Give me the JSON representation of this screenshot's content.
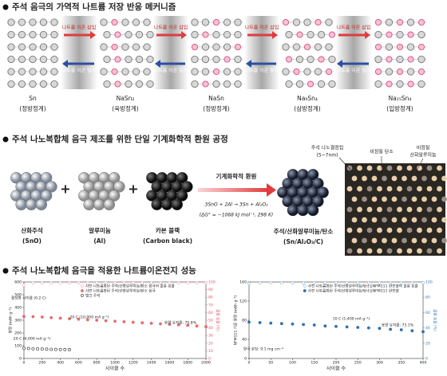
{
  "mechanism": {
    "title": "주석 음극의 가역적 나트륨 저장 반응 메커니즘",
    "insertion_label": "나트륨 이온 삽입",
    "extraction_label": "나트륨 이온 탈리",
    "phases": [
      {
        "name": "Sn",
        "system": "(정방정계)"
      },
      {
        "name": "NaSn₂",
        "system": "(육방정계)"
      },
      {
        "name": "NaSn",
        "system": "(정방정계)"
      },
      {
        "name": "Na₉Sn₄",
        "system": "(삼방정계)"
      },
      {
        "name": "Na₁₅Sn₄",
        "system": "(입방정계)"
      }
    ]
  },
  "synthesis": {
    "title": "주석 나노복합체 음극 제조를 위한 단일 기계화학적 환원 공정",
    "reactants": [
      {
        "name": "산화주석",
        "formula": "(SnO)"
      },
      {
        "name": "알루미늄",
        "formula": "(Al)"
      },
      {
        "name": "카본 블랙",
        "formula": "(Carbon black)"
      }
    ],
    "plus": "+",
    "process": "기계화학적 환원",
    "equation": "3SnO + 2Al → 3Sn + Al₂O₃",
    "energy": "(ΔG° = −1068 kJ mol⁻¹, 298 K)",
    "product": {
      "name": "주석/산화알루미늄/탄소",
      "formula": "(Sn/Al₂O₃/C)"
    },
    "components": {
      "nanocrystal": [
        "주석 나노결정립",
        "(5~7nm)"
      ],
      "carbon": "비정질 탄소",
      "alumina": [
        "비정질",
        "산화알루미늄"
      ]
    }
  },
  "performance": {
    "title": "주석 나노복합체 음극을 적용한 나트륨이온전지 성능"
  },
  "chart_data": [
    {
      "type": "scatter",
      "xlabel": "사이클 수",
      "ylabel": "용량 (mAh g⁻¹)",
      "y2label": "쿨롱 효율 (%)",
      "xlim": [
        0,
        2000
      ],
      "xticks": [
        0,
        200,
        400,
        600,
        800,
        1000,
        1200,
        1400,
        1600,
        1800,
        2000
      ],
      "ylim": [
        0,
        600
      ],
      "yticks": [
        0,
        100,
        200,
        300,
        400,
        500,
        600
      ],
      "y2lim": [
        0,
        100
      ],
      "y2ticks": [
        0,
        10,
        20,
        30,
        40,
        50,
        60,
        70,
        80,
        90,
        100
      ],
      "y2color": "#e8506a",
      "series": [
        {
          "name": "사전 나트륨화된 주석/산화알루미늄/탄소 음극의 쿨롱 효율",
          "color": "#f4a3b6",
          "marker": "open",
          "axis": "y2",
          "x": [
            0,
            100,
            200,
            300,
            400,
            500,
            600,
            700,
            800,
            900,
            1000,
            1100,
            1200,
            1300,
            1400,
            1500,
            1600,
            1700,
            1800,
            1900,
            2000
          ],
          "values": [
            96,
            99,
            99,
            99,
            99,
            99,
            99,
            99,
            99,
            99,
            99,
            99,
            99,
            99,
            99,
            99,
            99,
            99,
            99,
            99,
            99
          ]
        },
        {
          "name": "사전 나트륨화된 주석/산화알루미늄/탄소 음극",
          "color": "#e86b6b",
          "marker": "filled",
          "x": [
            0,
            100,
            200,
            300,
            400,
            500,
            600,
            700,
            800,
            900,
            1000,
            1100,
            1200,
            1300,
            1400,
            1500,
            1600,
            1700,
            1800,
            1900,
            2000
          ],
          "values": [
            330,
            328,
            325,
            320,
            316,
            312,
            308,
            304,
            300,
            296,
            292,
            288,
            284,
            280,
            276,
            272,
            268,
            264,
            260,
            255,
            250
          ]
        },
        {
          "name": "벌크 주석",
          "color": "#222222",
          "marker": "open",
          "x": [
            0,
            50,
            100,
            150,
            200,
            250,
            300,
            350,
            400,
            450,
            500
          ],
          "values": [
            80,
            78,
            76,
            75,
            74,
            73,
            72,
            71,
            70,
            70,
            69
          ]
        }
      ],
      "annotations": [
        "활성화 사이클 (0.2 C)",
        "20 C (10,000 mA g⁻¹)",
        "용량 유지율: 75.8%",
        "20 C (6,000 mA g⁻¹)"
      ]
    },
    {
      "type": "scatter",
      "xlabel": "사이클 수",
      "ylabel": "NFM111 기준 용량 (mAh g⁻¹)",
      "y2label": "쿨롱 효율 (%)",
      "xlim": [
        0,
        400
      ],
      "xticks": [
        0,
        50,
        100,
        150,
        200,
        250,
        300,
        350,
        400
      ],
      "ylim": [
        0,
        160
      ],
      "yticks": [
        0,
        40,
        80,
        120,
        160
      ],
      "y2lim": [
        0,
        100
      ],
      "y2ticks": [
        0,
        20,
        40,
        60,
        80,
        100
      ],
      "y2color": "#3a78c0",
      "series": [
        {
          "name": "사전 나트륨화된 주석/산화알루미늄/탄소||NFM111 완전셀의 쿨롱 효율",
          "color": "#8fb8e0",
          "marker": "open",
          "axis": "y2",
          "x": [
            0,
            25,
            50,
            75,
            100,
            125,
            150,
            175,
            200,
            225,
            250,
            275,
            300,
            325,
            350,
            375,
            400
          ],
          "values": [
            98,
            99,
            99,
            99,
            99,
            99,
            99,
            99,
            99,
            99,
            99,
            99,
            99,
            99,
            99,
            99,
            99
          ]
        },
        {
          "name": "사전 나트륨화된 주석/산화알루미늄/탄소||NFM111 완전셀",
          "color": "#2f6fb0",
          "marker": "filled",
          "x": [
            0,
            25,
            50,
            75,
            100,
            125,
            150,
            175,
            200,
            225,
            250,
            275,
            300,
            325,
            350,
            375,
            400
          ],
          "values": [
            76,
            75,
            74,
            73,
            72,
            71,
            70,
            68,
            67,
            66,
            65,
            64,
            63,
            61,
            60,
            58,
            56
          ]
        }
      ],
      "annotations": [
        "10 C (1,400 mA g⁻¹)",
        "용량 유지율: 73.1%",
        "양극 로딩: 9.1 mg cm⁻²"
      ]
    }
  ]
}
